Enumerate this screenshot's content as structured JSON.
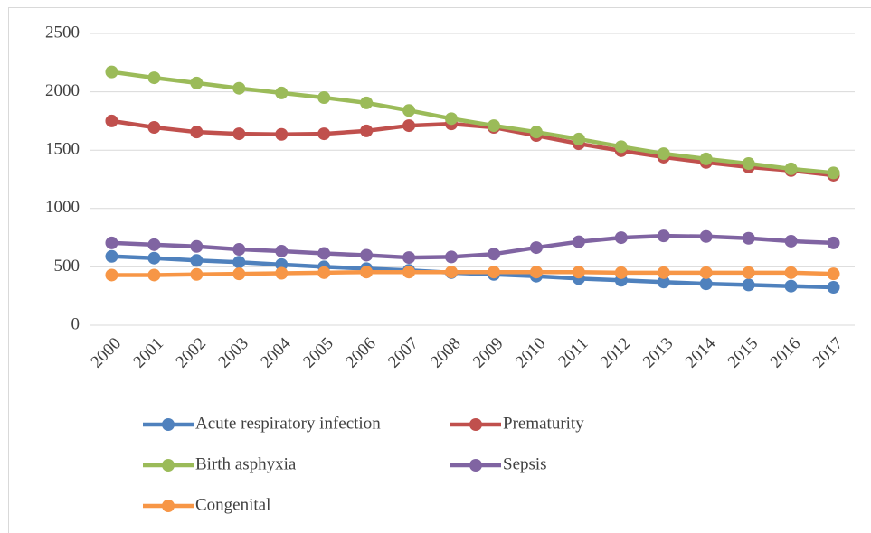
{
  "chart_data": {
    "type": "line",
    "categories": [
      "2000",
      "2001",
      "2002",
      "2003",
      "2004",
      "2005",
      "2006",
      "2007",
      "2008",
      "2009",
      "2010",
      "2011",
      "2012",
      "2013",
      "2014",
      "2015",
      "2016",
      "2017"
    ],
    "series": [
      {
        "name": "Acute respiratory infection",
        "color": "#4f81bd",
        "values": [
          590,
          575,
          555,
          540,
          520,
          500,
          485,
          470,
          450,
          435,
          420,
          400,
          385,
          370,
          355,
          345,
          335,
          325
        ]
      },
      {
        "name": "Prematurity",
        "color": "#c0504d",
        "values": [
          1750,
          1695,
          1655,
          1640,
          1635,
          1640,
          1665,
          1710,
          1725,
          1695,
          1625,
          1555,
          1495,
          1440,
          1395,
          1355,
          1325,
          1285
        ]
      },
      {
        "name": "Birth asphyxia",
        "color": "#9bbb59",
        "values": [
          2170,
          2120,
          2075,
          2030,
          1990,
          1950,
          1905,
          1840,
          1770,
          1710,
          1655,
          1595,
          1530,
          1470,
          1425,
          1385,
          1340,
          1305
        ]
      },
      {
        "name": "Sepsis",
        "color": "#8064a2",
        "values": [
          705,
          690,
          675,
          650,
          635,
          615,
          600,
          580,
          585,
          610,
          665,
          715,
          750,
          765,
          760,
          745,
          720,
          705
        ]
      },
      {
        "name": "Congenital",
        "color": "#f79646",
        "values": [
          430,
          430,
          435,
          440,
          445,
          450,
          455,
          455,
          455,
          455,
          455,
          455,
          450,
          450,
          450,
          450,
          450,
          440
        ]
      }
    ],
    "ylim": [
      0,
      2500
    ],
    "yticks": [
      0,
      500,
      1000,
      1500,
      2000,
      2500
    ],
    "grid": true,
    "legend": "bottom"
  }
}
